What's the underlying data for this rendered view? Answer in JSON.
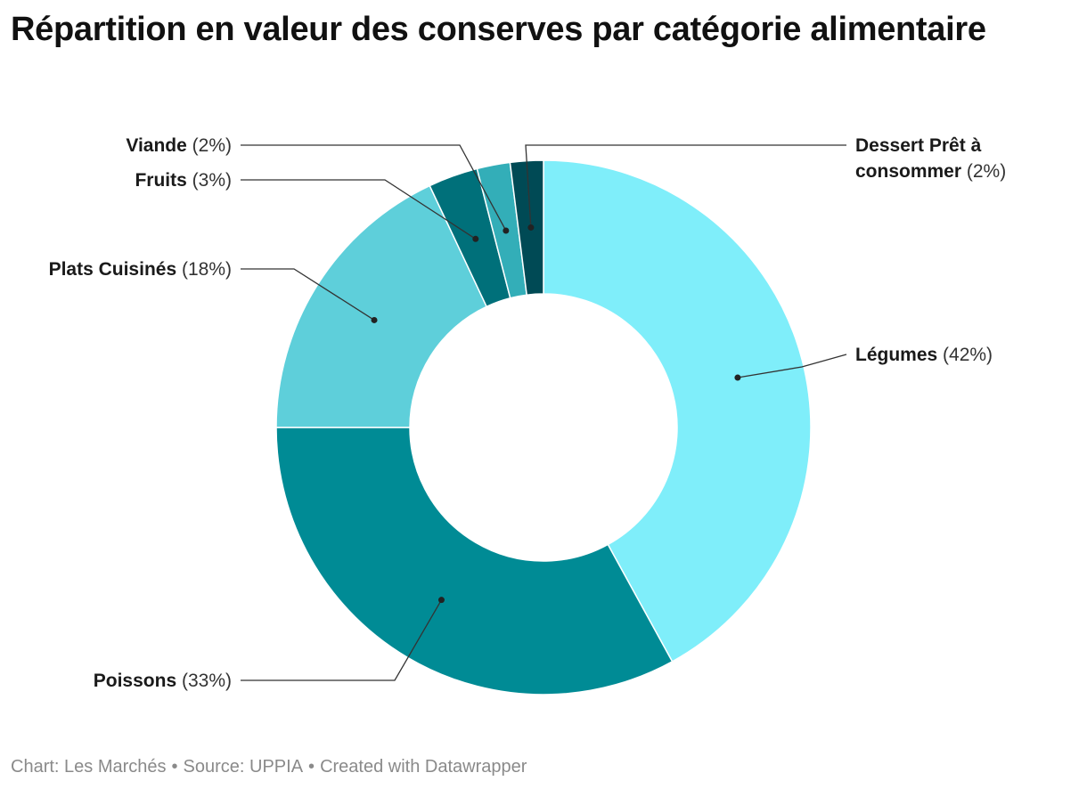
{
  "chart_data": {
    "type": "pie",
    "donut": true,
    "title": "Répartition en valeur des conserves par catégorie alimentaire",
    "categories": [
      "Légumes",
      "Poissons",
      "Plats Cuisinés",
      "Fruits",
      "Viande",
      "Dessert Prêt à consommer"
    ],
    "labels": [
      {
        "name": "Légumes",
        "pct": "(42%)"
      },
      {
        "name": "Poissons",
        "pct": "(33%)"
      },
      {
        "name": "Plats Cuisinés",
        "pct": "(18%)"
      },
      {
        "name": "Fruits",
        "pct": "(3%)"
      },
      {
        "name": "Viande",
        "pct": "(2%)"
      },
      {
        "name_lines": [
          "Dessert Prêt à",
          "consommer"
        ],
        "pct": "(2%)"
      }
    ],
    "values": [
      42,
      33,
      18,
      3,
      2,
      2
    ],
    "colors": [
      "#7FEEFA",
      "#008B95",
      "#5ECFDA",
      "#00707A",
      "#33AEB8",
      "#004A55"
    ]
  },
  "footer": {
    "chart": "Chart: Les Marchés",
    "source": "Source: UPPIA",
    "created": "Created with Datawrapper",
    "separator": "•"
  }
}
